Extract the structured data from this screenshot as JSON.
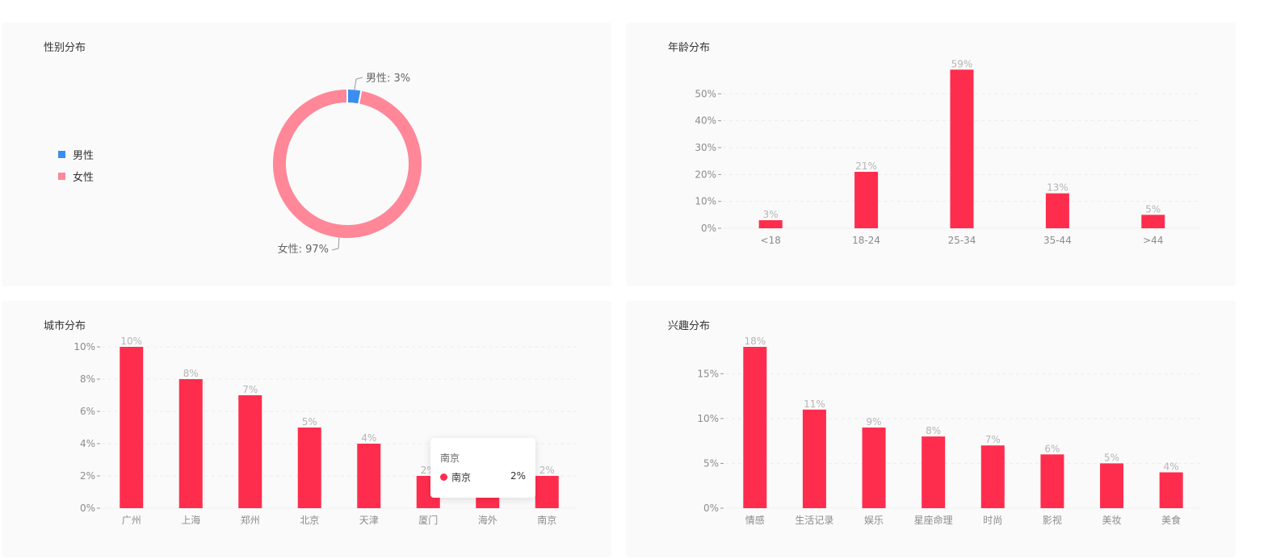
{
  "colors": {
    "bar": "#ff2d4d",
    "male": "#3b8ef0",
    "female": "#ff8798"
  },
  "gender": {
    "title": "性别分布",
    "legend": [
      {
        "label": "男性",
        "color": "#3b8ef0"
      },
      {
        "label": "女性",
        "color": "#ff8798"
      }
    ],
    "slice_labels": {
      "male": "男性: 3%",
      "female": "女性: 97%"
    }
  },
  "age": {
    "title": "年龄分布"
  },
  "city": {
    "title": "城市分布",
    "tooltip": {
      "title": "南京",
      "series": "南京",
      "value": "2%"
    }
  },
  "interest": {
    "title": "兴趣分布"
  },
  "chart_data": [
    {
      "id": "gender",
      "type": "pie",
      "title": "性别分布",
      "categories": [
        "男性",
        "女性"
      ],
      "values": [
        3,
        97
      ],
      "legend_position": "left"
    },
    {
      "id": "age",
      "type": "bar",
      "title": "年龄分布",
      "categories": [
        "<18",
        "18-24",
        "25-34",
        "35-44",
        ">44"
      ],
      "values": [
        3,
        21,
        59,
        13,
        5
      ],
      "ylim": [
        0,
        60
      ],
      "yticks": [
        0,
        10,
        20,
        30,
        40,
        50
      ],
      "tick_suffix": "%",
      "grid": true
    },
    {
      "id": "city",
      "type": "bar",
      "title": "城市分布",
      "categories": [
        "广州",
        "上海",
        "郑州",
        "北京",
        "天津",
        "厦门",
        "海外",
        "南京"
      ],
      "values": [
        10,
        8,
        7,
        5,
        4,
        2,
        2,
        2
      ],
      "ylim": [
        0,
        10
      ],
      "yticks": [
        0,
        2,
        4,
        6,
        8,
        10
      ],
      "tick_suffix": "%",
      "grid": true
    },
    {
      "id": "interest",
      "type": "bar",
      "title": "兴趣分布",
      "categories": [
        "情感",
        "生活记录",
        "娱乐",
        "星座命理",
        "时尚",
        "影视",
        "美妆",
        "美食"
      ],
      "values": [
        18,
        11,
        9,
        8,
        7,
        6,
        5,
        4
      ],
      "ylim": [
        0,
        18
      ],
      "yticks": [
        0,
        5,
        10,
        15
      ],
      "tick_suffix": "%",
      "grid": true
    }
  ]
}
